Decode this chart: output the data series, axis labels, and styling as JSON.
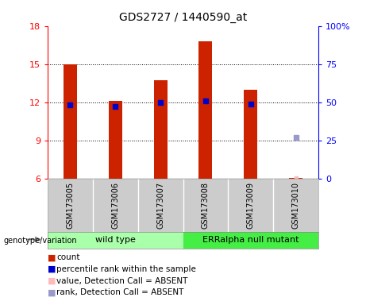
{
  "title": "GDS2727 / 1440590_at",
  "samples": [
    "GSM173005",
    "GSM173006",
    "GSM173007",
    "GSM173008",
    "GSM173009",
    "GSM173010"
  ],
  "count_values": [
    15.0,
    12.1,
    13.7,
    16.8,
    13.0,
    6.05
  ],
  "rank_values": [
    48,
    47,
    50,
    51,
    49,
    null
  ],
  "rank_absent": [
    null,
    null,
    null,
    null,
    null,
    27
  ],
  "count_absent": [
    null,
    null,
    null,
    null,
    null,
    6.05
  ],
  "group_boundaries": [
    2.5
  ],
  "group_labels": [
    "wild type",
    "ERRalpha null mutant"
  ],
  "group_colors": [
    "#aaffaa",
    "#44ee44"
  ],
  "ylim_left": [
    6,
    18
  ],
  "ylim_right": [
    0,
    100
  ],
  "yticks_left": [
    6,
    9,
    12,
    15,
    18
  ],
  "yticks_right": [
    0,
    25,
    50,
    75,
    100
  ],
  "ytick_right_labels": [
    "0",
    "25",
    "50",
    "75",
    "100%"
  ],
  "bar_color": "#cc2200",
  "rank_color": "#0000cc",
  "rank_absent_color": "#9999cc",
  "count_absent_color": "#ffbbbb",
  "grid_yticks": [
    9,
    12,
    15
  ],
  "bg_color": "#ffffff",
  "label_area_color": "#cccccc",
  "genotype_label": "genotype/variation",
  "legend_items": [
    {
      "color": "#cc2200",
      "label": "count"
    },
    {
      "color": "#0000cc",
      "label": "percentile rank within the sample"
    },
    {
      "color": "#ffbbbb",
      "label": "value, Detection Call = ABSENT"
    },
    {
      "color": "#9999cc",
      "label": "rank, Detection Call = ABSENT"
    }
  ],
  "bar_width": 0.3,
  "marker_size": 5
}
